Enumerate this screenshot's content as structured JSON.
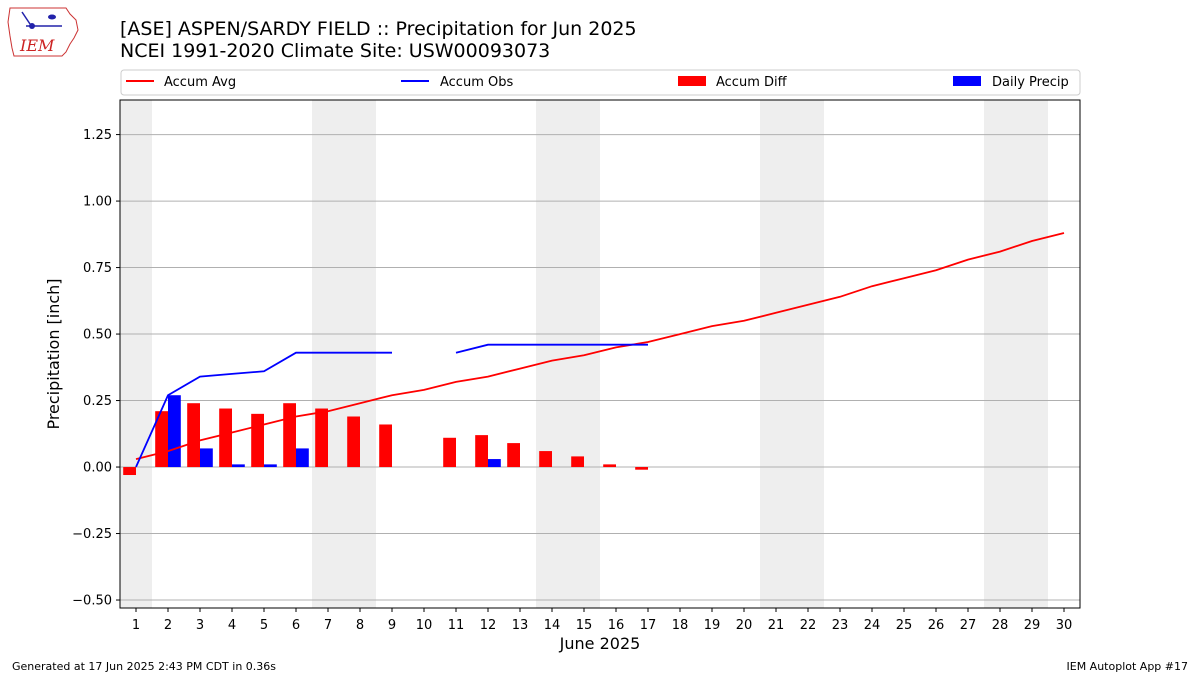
{
  "title_line1": "[ASE] ASPEN/SARDY FIELD :: Precipitation for Jun 2025",
  "title_line2": "NCEI 1991-2020 Climate Site: USW00093073",
  "logo_text": "IEM",
  "footer_left": "Generated at 17 Jun 2025 2:43 PM CDT in 0.36s",
  "footer_right": "IEM Autoplot App #17",
  "colors": {
    "accum_avg": "#ff0000",
    "accum_obs": "#0000ff",
    "accum_diff": "#ff0000",
    "daily_precip": "#0000ff",
    "weekend_band": "#eeeeee",
    "grid": "#b0b0b0"
  },
  "chart_data": {
    "type": "bar",
    "xlabel": "June 2025",
    "ylabel": "Precipitation [inch]",
    "xlim": [
      0.5,
      30.5
    ],
    "ylim": [
      -0.53,
      1.38
    ],
    "yticks": [
      "−0.50",
      "−0.25",
      "0.00",
      "0.25",
      "0.50",
      "0.75",
      "1.00",
      "1.25"
    ],
    "ytick_values": [
      -0.5,
      -0.25,
      0.0,
      0.25,
      0.5,
      0.75,
      1.0,
      1.25
    ],
    "xticks": [
      "1",
      "2",
      "3",
      "4",
      "5",
      "6",
      "7",
      "8",
      "9",
      "10",
      "11",
      "12",
      "13",
      "14",
      "15",
      "16",
      "17",
      "18",
      "19",
      "20",
      "21",
      "22",
      "23",
      "24",
      "25",
      "26",
      "27",
      "28",
      "29",
      "30"
    ],
    "grid": "horizontal",
    "legend_placement": "top, above plot",
    "weekend_bands": [
      [
        0.5,
        1.5
      ],
      [
        6.5,
        8.5
      ],
      [
        13.5,
        15.5
      ],
      [
        20.5,
        22.5
      ],
      [
        27.5,
        29.5
      ]
    ],
    "series": [
      {
        "name": "Accum Avg",
        "kind": "line",
        "x": [
          1,
          2,
          3,
          4,
          5,
          6,
          7,
          8,
          9,
          10,
          11,
          12,
          13,
          14,
          15,
          16,
          17,
          18,
          19,
          20,
          21,
          22,
          23,
          24,
          25,
          26,
          27,
          28,
          29,
          30
        ],
        "values": [
          0.03,
          0.06,
          0.1,
          0.13,
          0.16,
          0.19,
          0.21,
          0.24,
          0.27,
          0.29,
          0.32,
          0.34,
          0.37,
          0.4,
          0.42,
          0.45,
          0.47,
          0.5,
          0.53,
          0.55,
          0.58,
          0.61,
          0.64,
          0.68,
          0.71,
          0.74,
          0.78,
          0.81,
          0.85,
          0.88
        ]
      },
      {
        "name": "Accum Obs",
        "kind": "line",
        "x": [
          1,
          2,
          3,
          4,
          5,
          6,
          7,
          8,
          9,
          10,
          11,
          12,
          13,
          14,
          15,
          16,
          17
        ],
        "values": [
          0.0,
          0.27,
          0.34,
          0.35,
          0.36,
          0.43,
          0.43,
          0.43,
          0.43,
          null,
          0.43,
          0.46,
          0.46,
          0.46,
          0.46,
          0.46,
          0.46
        ]
      },
      {
        "name": "Accum Diff",
        "kind": "bar",
        "x": [
          1,
          2,
          3,
          4,
          5,
          6,
          7,
          8,
          9,
          10,
          11,
          12,
          13,
          14,
          15,
          16,
          17
        ],
        "values": [
          -0.03,
          0.21,
          0.24,
          0.22,
          0.2,
          0.24,
          0.22,
          0.19,
          0.16,
          null,
          0.11,
          0.12,
          0.09,
          0.06,
          0.04,
          0.01,
          -0.01
        ]
      },
      {
        "name": "Daily Precip",
        "kind": "bar",
        "x": [
          1,
          2,
          3,
          4,
          5,
          6,
          7,
          8,
          9,
          10,
          11,
          12,
          13,
          14,
          15,
          16,
          17
        ],
        "values": [
          0,
          0.27,
          0.07,
          0.01,
          0.01,
          0.07,
          0,
          0,
          0,
          null,
          0,
          0.03,
          0,
          0,
          0,
          0,
          0
        ]
      }
    ]
  }
}
